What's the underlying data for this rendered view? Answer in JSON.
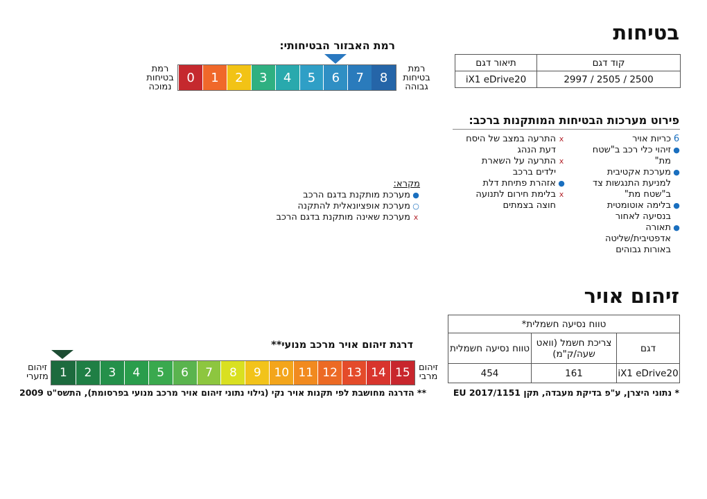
{
  "safety": {
    "title": "בטיחות",
    "level_title": "רמת האבזור הבטיחותי:",
    "low_label": [
      "רמת",
      "בטיחות",
      "נמוכה"
    ],
    "high_label": [
      "רמת",
      "בטיחות",
      "גבוהה"
    ],
    "scale": [
      "8",
      "7",
      "6",
      "5",
      "4",
      "3",
      "2",
      "1",
      "0"
    ],
    "scale_colors": [
      "#2565a8",
      "#2a7bbc",
      "#2f8fc4",
      "#2f9fc6",
      "#29a9ad",
      "#2fb081",
      "#f2c315",
      "#f0682a",
      "#c5292e"
    ],
    "selected_level": 6,
    "table": {
      "headers": [
        "קוד דגם",
        "תיאור דגם"
      ],
      "rows": [
        [
          "2500 / 2505 / 2997",
          "iX1 eDrive20"
        ]
      ]
    },
    "systems_title": "פירוט מערכות הבטיחות המותקנות ברכב:",
    "systems_col1": [
      {
        "mark": "6",
        "type": "num",
        "text": "כריות אויר"
      },
      {
        "mark": "●",
        "type": "dot",
        "text": "זיהוי כלי רכב ב\"שטח מת\""
      },
      {
        "mark": "●",
        "type": "dot",
        "text": "מערכת אקטיבית למניעת התנגשות צד ב\"שטח מת\""
      },
      {
        "mark": "●",
        "type": "dot",
        "text": "בלימה אוטומטית בנסיעה לאחור"
      },
      {
        "mark": "●",
        "type": "dot",
        "text": "תאורה אדפטיבית/שליטה באורות גבוהים"
      }
    ],
    "systems_col2": [
      {
        "mark": "x",
        "type": "x",
        "text": "התרעה במצב של היסח דעת הנהג"
      },
      {
        "mark": "x",
        "type": "x",
        "text": "התרעה על השארת ילדים ברכב"
      },
      {
        "mark": "●",
        "type": "dot",
        "text": "אזהרת פתיחת דלת"
      },
      {
        "mark": "x",
        "type": "x",
        "text": "בלימת חירום לתנועה חוצה בצמתים"
      }
    ],
    "legend": {
      "title": "מקרא:",
      "items": [
        {
          "mark": "●",
          "type": "dot",
          "text": "מערכת מותקנת בדגם הרכב"
        },
        {
          "mark": "○",
          "type": "dot",
          "text": "מערכת אופציונאלית להתקנה"
        },
        {
          "mark": "x",
          "type": "x",
          "text": "מערכת שאינה מותקנת בדגם הרכב"
        }
      ]
    }
  },
  "pollution": {
    "title": "זיהום אויר",
    "scale_title": "דרגת זיהום אויר מרכב מנועי**",
    "low_label": [
      "זיהום",
      "מזערי"
    ],
    "high_label": [
      "זיהום",
      "מרבי"
    ],
    "scale": [
      "1",
      "2",
      "3",
      "4",
      "5",
      "6",
      "7",
      "8",
      "9",
      "10",
      "11",
      "12",
      "13",
      "14",
      "15"
    ],
    "scale_colors": [
      "#1d6b3e",
      "#1f7f45",
      "#24904a",
      "#2a9d4c",
      "#3aa94e",
      "#5ab44e",
      "#8dc63f",
      "#d9e021",
      "#f2c31a",
      "#f3a51b",
      "#f18a1f",
      "#ec6a24",
      "#e44b2a",
      "#d8352d",
      "#c8262d"
    ],
    "selected_level": 1,
    "table": {
      "span_header": "טווח נסיעה חשמלית*",
      "headers": [
        "דגם",
        "צריכת חשמל (וואט שעה/ק\"מ)",
        "טווח נסיעה חשמלית"
      ],
      "rows": [
        [
          "iX1 eDrive20",
          "161",
          "454"
        ]
      ]
    },
    "note_left": "** הדרגה מחושבת לפי תקנות אויר נקי (גילוי נתוני זיהום אויר מרכב מנועי בפרסומת), התשס\"ט 2009",
    "note_right": "* נתוני היצרן, ע\"פ בדיקת מעבדה, תקן EU 2017/1151"
  }
}
